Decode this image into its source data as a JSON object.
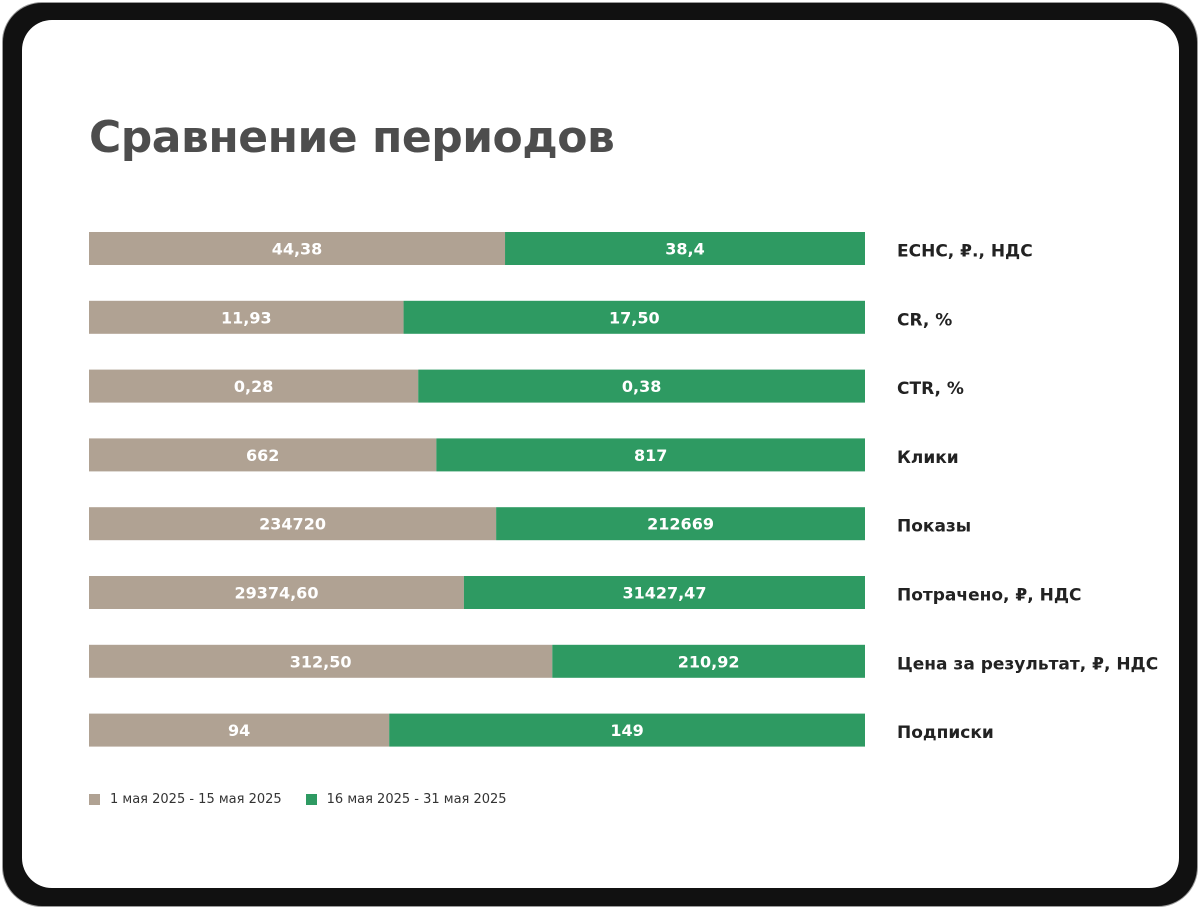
{
  "title": "Сравнение периодов",
  "colors": {
    "period1": "#b0a293",
    "period2": "#2e9a62"
  },
  "chart_data": {
    "type": "bar",
    "orientation": "horizontal",
    "stacked_percent": true,
    "categories": [
      "ЕСНС, ₽., НДС",
      "CR, %",
      "CTR, %",
      "Клики",
      "Показы",
      "Потрачено, ₽, НДС",
      "Цена за результат, ₽, НДС",
      "Подписки"
    ],
    "series": [
      {
        "name": "1 мая 2025 - 15 мая 2025",
        "values": [
          44.38,
          11.93,
          0.28,
          662,
          234720,
          29374.6,
          312.5,
          94
        ],
        "labels": [
          "44,38",
          "11,93",
          "0,28",
          "662",
          "234720",
          "29374,60",
          "312,50",
          "94"
        ]
      },
      {
        "name": "16 мая 2025 - 31 мая 2025",
        "values": [
          38.4,
          17.5,
          0.38,
          817,
          212669,
          31427.47,
          210.92,
          149
        ],
        "labels": [
          "38,4",
          "17,50",
          "0,38",
          "817",
          "212669",
          "31427,47",
          "210,92",
          "149"
        ]
      }
    ],
    "legend_position": "bottom-left",
    "grid": false
  }
}
